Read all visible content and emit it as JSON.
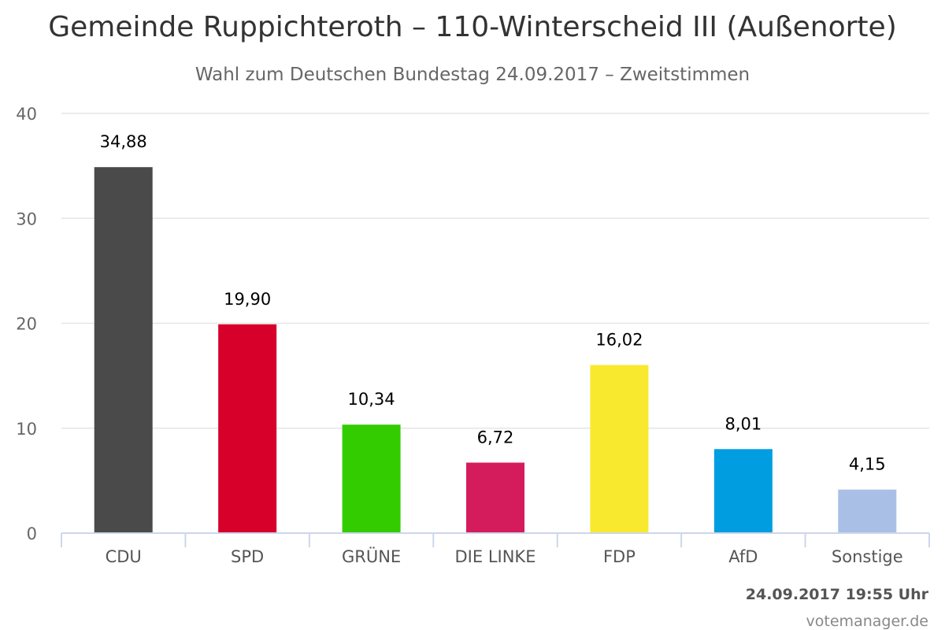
{
  "title": "Gemeinde Ruppichteroth – 110-Winterscheid III (Außenorte)",
  "subtitle": "Wahl zum Deutschen Bundestag 24.09.2017 – Zweitstimmen",
  "timestamp": "24.09.2017 19:55 Uhr",
  "credit": "votemanager.de",
  "chart_data": {
    "type": "bar",
    "title": "Gemeinde Ruppichteroth – 110-Winterscheid III (Außenorte)",
    "subtitle": "Wahl zum Deutschen Bundestag 24.09.2017 – Zweitstimmen",
    "categories": [
      "CDU",
      "SPD",
      "GRÜNE",
      "DIE LINKE",
      "FDP",
      "AfD",
      "Sonstige"
    ],
    "values": [
      34.88,
      19.9,
      10.34,
      6.72,
      16.02,
      8.01,
      4.15
    ],
    "value_labels": [
      "34,88",
      "19,90",
      "10,34",
      "6,72",
      "16,02",
      "8,01",
      "4,15"
    ],
    "colors": [
      "#4a4a4a",
      "#d7002a",
      "#33cc00",
      "#d41c5c",
      "#f9e92e",
      "#009ee0",
      "#aabfe6"
    ],
    "ylim": [
      0,
      40
    ],
    "yticks": [
      0,
      10,
      20,
      30,
      40
    ],
    "grid": true,
    "xlabel": "",
    "ylabel": ""
  }
}
